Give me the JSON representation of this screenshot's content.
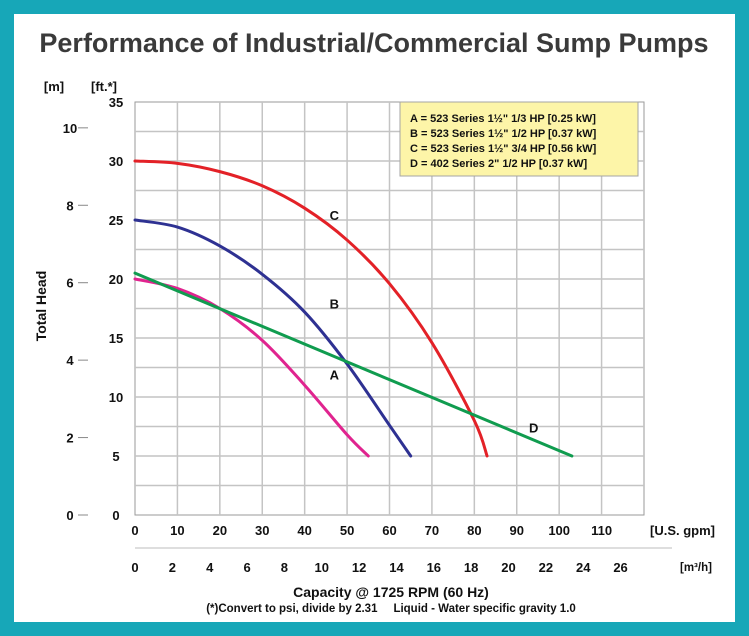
{
  "chart_data": {
    "type": "line",
    "title": "Performance of Industrial/Commercial Sump Pumps",
    "ylabel": "Total Head",
    "xlabel": "Capacity @ 1725 RPM (60 Hz)",
    "footnote": "(*)Convert to psi, divide by 2.31     Liquid - Water specific gravity 1.0",
    "x_unit_primary": "[U.S. gpm]",
    "x_unit_secondary": "[m³/h]",
    "y_unit_left": "[m]",
    "y_unit_right": "[ft.*]",
    "x_ticks_gpm": [
      "0",
      "10",
      "20",
      "30",
      "40",
      "50",
      "60",
      "70",
      "80",
      "90",
      "100",
      "110"
    ],
    "x_ticks_m3h": [
      "0",
      "2",
      "4",
      "6",
      "8",
      "10",
      "12",
      "14",
      "16",
      "18",
      "20",
      "22",
      "24",
      "26"
    ],
    "y_ticks_ft": [
      "0",
      "5",
      "10",
      "15",
      "20",
      "25",
      "30",
      "35"
    ],
    "y_ticks_m": [
      "0",
      "2",
      "4",
      "6",
      "8",
      "10"
    ],
    "xlim": [
      0,
      120
    ],
    "ylim": [
      0,
      35
    ],
    "grid": true,
    "legend_position": "top-right",
    "legend": [
      "A = 523 Series 1½\" 1/3 HP [0.25 kW]",
      "B = 523 Series 1½\" 1/2 HP [0.37 kW]",
      "C = 523 Series 1½\" 3/4 HP [0.56 kW]",
      "D = 402 Series 2\" 1/2 HP [0.37 kW]"
    ],
    "series": [
      {
        "name": "A",
        "color": "#e0248f",
        "label_at": [
          47,
          11.5
        ],
        "x": [
          0,
          10,
          20,
          30,
          40,
          50,
          55
        ],
        "y": [
          20,
          19.2,
          17.5,
          14.8,
          11,
          6.8,
          5
        ]
      },
      {
        "name": "B",
        "color": "#2e3192",
        "label_at": [
          47,
          17.5
        ],
        "x": [
          0,
          10,
          20,
          30,
          40,
          50,
          60,
          65
        ],
        "y": [
          25,
          24.4,
          22.8,
          20.4,
          17.2,
          12.8,
          7.6,
          5
        ]
      },
      {
        "name": "C",
        "color": "#e32127",
        "label_at": [
          47,
          25
        ],
        "x": [
          0,
          10,
          20,
          30,
          40,
          50,
          60,
          70,
          80,
          83
        ],
        "y": [
          30,
          29.8,
          29.1,
          27.9,
          26,
          23.3,
          19.6,
          14.6,
          8,
          5
        ]
      },
      {
        "name": "D",
        "color": "#109c4f",
        "label_at": [
          94,
          7
        ],
        "x": [
          0,
          103
        ],
        "y": [
          20.5,
          5
        ]
      }
    ]
  }
}
